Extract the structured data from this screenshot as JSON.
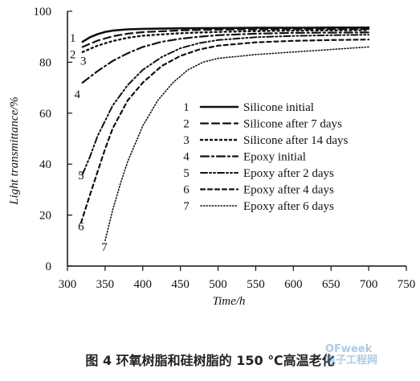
{
  "caption": "图 4   环氧树脂和硅树脂的 150 ℃高温老化",
  "watermark": {
    "line1": "OFweek",
    "line2": "电子工程网"
  },
  "chart_data": {
    "type": "line",
    "title": "",
    "xlabel": "Time/h",
    "ylabel": "Light transmittance/%",
    "xlim": [
      300,
      750
    ],
    "ylim": [
      0,
      100
    ],
    "xticks": [
      300,
      350,
      400,
      450,
      500,
      550,
      600,
      650,
      700,
      750
    ],
    "yticks": [
      0,
      20,
      40,
      60,
      80,
      100
    ],
    "grid": false,
    "legend_position": "center-right",
    "series": [
      {
        "id": "1",
        "name": "Silicone initial",
        "dash": "solid",
        "x": [
          320,
          330,
          340,
          350,
          360,
          380,
          400,
          450,
          500,
          550,
          600,
          650,
          700
        ],
        "y": [
          88,
          89.8,
          91,
          91.9,
          92.4,
          92.9,
          93.1,
          93.3,
          93.4,
          93.5,
          93.5,
          93.6,
          93.6
        ]
      },
      {
        "id": "2",
        "name": "Silicone after 7 days",
        "dash": "dash",
        "x": [
          320,
          340,
          360,
          380,
          400,
          450,
          500,
          550,
          600,
          650,
          700
        ],
        "y": [
          86,
          88.5,
          90.2,
          91.2,
          91.8,
          92.5,
          92.8,
          92.9,
          93,
          93,
          93
        ]
      },
      {
        "id": "3",
        "name": "Silicone after 14 days",
        "dash": "dot",
        "x": [
          320,
          340,
          360,
          380,
          400,
          450,
          500,
          550,
          600,
          650,
          700
        ],
        "y": [
          84,
          86.5,
          88.3,
          89.6,
          90.4,
          91.4,
          91.9,
          92.2,
          92.4,
          92.5,
          92.6
        ]
      },
      {
        "id": "4",
        "name": "Epoxy initial",
        "dash": "dashdot",
        "x": [
          320,
          340,
          360,
          380,
          400,
          425,
          450,
          475,
          500,
          550,
          600,
          650,
          700
        ],
        "y": [
          72,
          76.5,
          80.5,
          83.5,
          86,
          88,
          89.2,
          90,
          90.6,
          91.2,
          91.5,
          91.6,
          91.7
        ]
      },
      {
        "id": "5",
        "name": "Epoxy after 2 days",
        "dash": "dashdotdot",
        "x": [
          320,
          330,
          340,
          350,
          360,
          380,
          400,
          425,
          450,
          475,
          500,
          550,
          600,
          650,
          700
        ],
        "y": [
          36,
          43,
          51,
          57,
          63,
          71,
          77,
          82,
          85.5,
          87.5,
          88.7,
          89.8,
          90.3,
          90.6,
          90.8
        ]
      },
      {
        "id": "6",
        "name": "Epoxy after 4 days",
        "dash": "shortdash",
        "x": [
          318,
          330,
          340,
          350,
          360,
          380,
          400,
          425,
          450,
          475,
          500,
          550,
          600,
          650,
          700
        ],
        "y": [
          17,
          28,
          37,
          46,
          54,
          65,
          72,
          78.5,
          82.5,
          85,
          86.5,
          87.8,
          88.4,
          88.7,
          88.9
        ]
      },
      {
        "id": "7",
        "name": "Epoxy after 6 days",
        "dash": "finedot",
        "x": [
          350,
          360,
          370,
          380,
          400,
          420,
          440,
          460,
          480,
          500,
          550,
          600,
          650,
          700
        ],
        "y": [
          10,
          22,
          32,
          41,
          55,
          65,
          72,
          77,
          80,
          81.5,
          83,
          84,
          85,
          86
        ]
      }
    ],
    "curve_labels": [
      {
        "id": "1",
        "x": 307,
        "y": 88
      },
      {
        "id": "2",
        "x": 307,
        "y": 81.5
      },
      {
        "id": "3",
        "x": 321,
        "y": 79
      },
      {
        "id": "4",
        "x": 313,
        "y": 66
      },
      {
        "id": "5",
        "x": 318,
        "y": 34
      },
      {
        "id": "6",
        "x": 318,
        "y": 14
      },
      {
        "id": "7",
        "x": 349,
        "y": 6
      }
    ]
  }
}
